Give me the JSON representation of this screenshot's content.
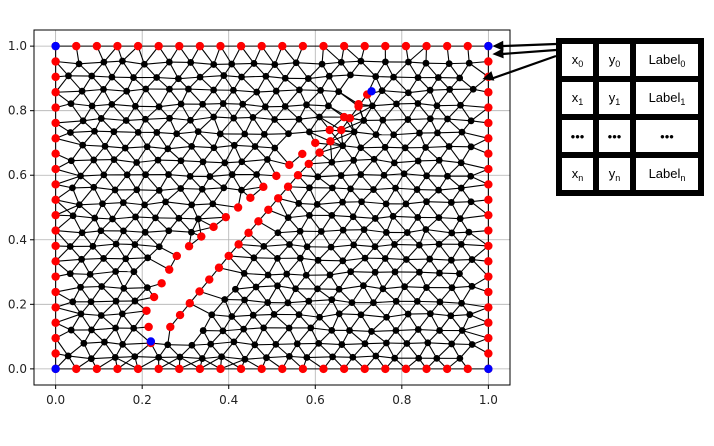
{
  "chart_data": {
    "type": "scatter",
    "title": "",
    "xlabel": "",
    "ylabel": "",
    "xlim": [
      -0.05,
      1.05
    ],
    "ylim": [
      -0.05,
      1.05
    ],
    "x_ticks": [
      "0.0",
      "0.2",
      "0.4",
      "0.6",
      "0.8",
      "1.0"
    ],
    "y_ticks": [
      "0.0",
      "0.2",
      "0.4",
      "0.6",
      "0.8",
      "1.0"
    ],
    "grid": true,
    "series": [
      {
        "kind": "interior-mesh-nodes",
        "color": "#000000",
        "description_points": "triangular mesh of interior nodes with edges over unit square"
      },
      {
        "kind": "boundary-nodes",
        "color": "#ff0000",
        "outer_boundary": "square [0,1]x[0,1]",
        "hole_polygon": [
          [
            0.22,
            0.08
          ],
          [
            0.265,
            0.13
          ],
          [
            0.4,
            0.35
          ],
          [
            0.56,
            0.6
          ],
          [
            0.66,
            0.74
          ],
          [
            0.72,
            0.85
          ],
          [
            0.7,
            0.82
          ],
          [
            0.6,
            0.7
          ],
          [
            0.45,
            0.53
          ],
          [
            0.28,
            0.35
          ],
          [
            0.21,
            0.18
          ]
        ]
      },
      {
        "kind": "corner-nodes",
        "color": "#0000ff",
        "points": [
          [
            0.0,
            0.0
          ],
          [
            0.0,
            1.0
          ],
          [
            1.0,
            1.0
          ],
          [
            1.0,
            0.0
          ],
          [
            0.22,
            0.085
          ],
          [
            0.73,
            0.86
          ]
        ]
      }
    ]
  },
  "table": {
    "rows": [
      {
        "x": "x",
        "x_sub": "0",
        "y": "y",
        "y_sub": "0",
        "label": "Label",
        "label_sub": "0"
      },
      {
        "x": "x",
        "x_sub": "1",
        "y": "y",
        "y_sub": "1",
        "label": "Label",
        "label_sub": "1"
      },
      {
        "x": "•••",
        "x_sub": "",
        "y": "•••",
        "y_sub": "",
        "label": "•••",
        "label_sub": ""
      },
      {
        "x": "x",
        "x_sub": "n",
        "y": "y",
        "y_sub": "n",
        "label": "Label",
        "label_sub": "n"
      }
    ]
  }
}
